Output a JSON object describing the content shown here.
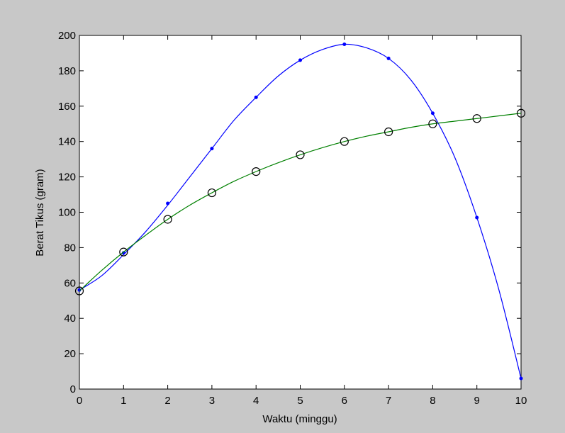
{
  "chart_data": {
    "type": "line",
    "title": "",
    "xlabel": "Waktu (minggu)",
    "ylabel": "Berat Tikus (gram)",
    "xlim": [
      0,
      10
    ],
    "ylim": [
      0,
      200
    ],
    "xticks": [
      0,
      1,
      2,
      3,
      4,
      5,
      6,
      7,
      8,
      9,
      10
    ],
    "yticks": [
      0,
      20,
      40,
      60,
      80,
      100,
      120,
      140,
      160,
      180,
      200
    ],
    "grid": false,
    "legend": "none",
    "series": [
      {
        "style": "blue solid line with dot markers",
        "color": "#0000ff",
        "marker": "dot",
        "x": [
          0,
          1,
          2,
          3,
          4,
          5,
          6,
          7,
          8,
          9,
          10
        ],
        "y": [
          56,
          77,
          105,
          136,
          165,
          186,
          195,
          187,
          156,
          97,
          6
        ],
        "curve_x": [
          0,
          0.5,
          1,
          1.5,
          2,
          2.5,
          3,
          3.5,
          4,
          4.5,
          5,
          5.5,
          6,
          6.5,
          7,
          7.5,
          8,
          8.5,
          9,
          9.5,
          10
        ],
        "curve_y": [
          56,
          64,
          76,
          89,
          104,
          120,
          136,
          152,
          165,
          177,
          186,
          192,
          195,
          193,
          187,
          175,
          156,
          131,
          97,
          56,
          6
        ]
      },
      {
        "style": "green solid line with black open circle markers",
        "color": "#008000",
        "marker_color": "#000000",
        "marker": "circle",
        "x": [
          0,
          1,
          2,
          3,
          4,
          5,
          6,
          7,
          8,
          9,
          10
        ],
        "y": [
          55.5,
          77.5,
          96,
          111,
          123,
          132.5,
          140,
          145.5,
          150,
          153,
          156
        ],
        "curve_x": [
          0,
          0.5,
          1,
          1.5,
          2,
          2.5,
          3,
          3.5,
          4,
          4.5,
          5,
          5.5,
          6,
          6.5,
          7,
          7.5,
          8,
          8.5,
          9,
          9.5,
          10
        ],
        "curve_y": [
          55.5,
          67,
          77.5,
          87,
          96,
          104,
          111,
          117.5,
          123,
          128,
          132.5,
          136.5,
          140,
          143,
          145.5,
          148,
          150,
          151.5,
          153,
          154.5,
          156
        ]
      }
    ]
  }
}
